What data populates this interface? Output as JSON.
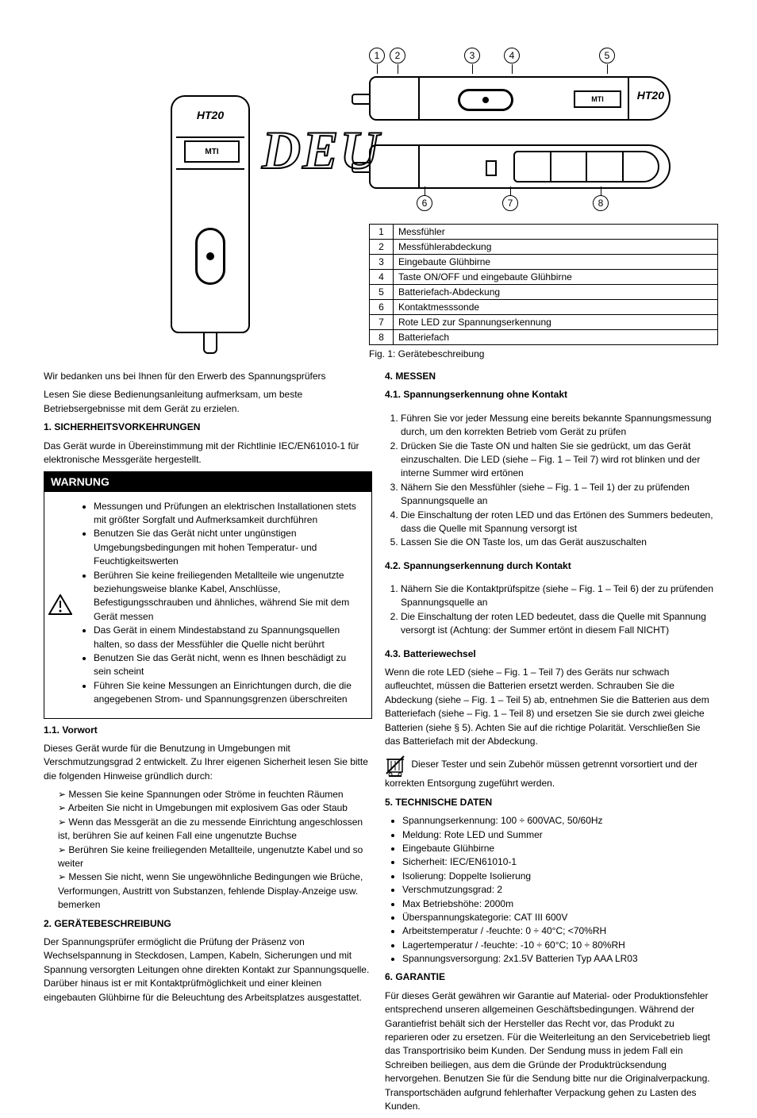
{
  "lang_tag": "DEU",
  "pen_label_ht20": "HT20",
  "pen_label_logo": "MTI",
  "callouts_top": [
    "1",
    "2",
    "3",
    "4",
    "5"
  ],
  "callouts_bot": [
    "6",
    "7",
    "8"
  ],
  "callouts_top_pos": [
    0,
    26,
    120,
    170,
    290
  ],
  "callouts_bot_pos": [
    60,
    168,
    282
  ],
  "table_caption": "Fig. 1: Gerätebeschreibung",
  "table_rows": [
    [
      "1",
      "Messfühler"
    ],
    [
      "2",
      "Messfühlerabdeckung"
    ],
    [
      "3",
      "Eingebaute Glühbirne"
    ],
    [
      "4",
      "Taste ON/OFF und eingebaute Glühbirne"
    ],
    [
      "5",
      "Batteriefach-Abdeckung"
    ],
    [
      "6",
      "Kontaktmesssonde"
    ],
    [
      "7",
      "Rote LED zur Spannungserkennung"
    ],
    [
      "8",
      "Batteriefach"
    ]
  ],
  "thanks1": "Wir bedanken uns bei Ihnen für den Erwerb des Spannungsprüfers",
  "thanks2": "Lesen Sie diese Bedienungsanleitung aufmerksam, um beste Betriebsergebnisse mit dem Gerät zu erzielen.",
  "sec1_title": "1. SICHERHEITSVORKEHRUNGEN",
  "sec1_intro": "Das Gerät wurde in Übereinstimmung mit der Richtlinie IEC/EN61010-1 für elektronische Messgeräte hergestellt.",
  "warn_title": "WARNUNG",
  "warn_items": [
    "Messungen und Prüfungen an elektrischen Installationen stets mit größter Sorgfalt und Aufmerksamkeit durchführen",
    "Benutzen Sie das Gerät nicht unter ungünstigen Umgebungsbedingungen mit hohen Temperatur- und Feuchtigkeitswerten",
    "Berühren Sie keine freiliegenden Metallteile wie ungenutzte beziehungsweise blanke Kabel, Anschlüsse, Befestigungsschrauben und ähnliches, während Sie mit dem Gerät messen",
    "Das Gerät in einem Mindestabstand zu Spannungsquellen halten, so dass der Messfühler die Quelle nicht berührt",
    "Benutzen Sie das Gerät nicht, wenn es Ihnen beschädigt zu sein scheint",
    "Führen Sie keine Messungen an Einrichtungen durch, die die angegebenen Strom- und Spannungsgrenzen überschreiten"
  ],
  "sec11_title": "1.1. Vorwort",
  "sec11_text": "Dieses Gerät wurde für die Benutzung in Umgebungen mit Verschmutzungsgrad 2 entwickelt. Zu Ihrer eigenen Sicherheit lesen Sie bitte die folgenden Hinweise gründlich durch:",
  "sec11_items": [
    "Messen Sie keine Spannungen oder Ströme in feuchten Räumen",
    "Arbeiten Sie nicht in Umgebungen mit explosivem Gas oder Staub",
    "Wenn das Messgerät an die zu messende Einrichtung angeschlossen ist, berühren Sie auf keinen Fall eine ungenutzte Buchse",
    "Berühren Sie keine freiliegenden Metallteile, ungenutzte Kabel und so weiter",
    "Messen Sie nicht, wenn Sie ungewöhnliche Bedingungen wie Brüche, Verformungen, Austritt von Substanzen, fehlende Display-Anzeige usw. bemerken"
  ],
  "sec2_title": "2. GERÄTEBESCHREIBUNG",
  "sec2_text": "Der Spannungsprüfer ermöglicht die Prüfung der Präsenz von Wechselspannung in Steckdosen, Lampen, Kabeln, Sicherungen und mit Spannung versorgten Leitungen ohne direkten Kontakt zur Spannungsquelle. Darüber hinaus ist er mit Kontaktprüfmöglichkeit und einer kleinen eingebauten Glühbirne für die Beleuchtung des Arbeitsplatzes ausgestattet.",
  "sec4_title": "4. MESSEN",
  "sec41_title": "4.1. Spannungserkennung ohne Kontakt",
  "sec41_steps": [
    "Führen Sie vor jeder Messung eine bereits bekannte Spannungsmessung durch, um den korrekten Betrieb vom Gerät zu prüfen",
    "Drücken Sie die Taste ON und halten Sie sie gedrückt, um das Gerät einzuschalten. Die LED (siehe – Fig. 1 – Teil 7) wird rot blinken und der interne Summer wird ertönen",
    "Nähern Sie den Messfühler (siehe – Fig. 1 – Teil 1) der zu prüfenden Spannungsquelle an",
    "Die Einschaltung der roten LED und das Ertönen des Summers bedeuten, dass die Quelle mit Spannung versorgt ist",
    "Lassen Sie die ON Taste los, um das Gerät auszuschalten"
  ],
  "sec42_title": "4.2. Spannungserkennung durch Kontakt",
  "sec42_steps": [
    "Nähern Sie die Kontaktprüfspitze (siehe – Fig. 1 – Teil 6) der zu prüfenden Spannungsquelle an",
    "Die Einschaltung der roten LED bedeutet, dass die Quelle mit Spannung versorgt ist (Achtung: der Summer ertönt in diesem Fall NICHT)"
  ],
  "sec43_title": "4.3. Batteriewechsel",
  "sec43_text": "Wenn die rote LED (siehe – Fig. 1 – Teil 7) des Geräts nur schwach aufleuchtet, müssen die Batterien ersetzt werden. Schrauben Sie die Abdeckung (siehe – Fig. 1 – Teil 5) ab, entnehmen Sie die Batterien aus dem Batteriefach (siehe – Fig. 1 – Teil 8) und ersetzen Sie sie durch zwei gleiche Batterien (siehe § 5). Achten Sie auf die richtige Polarität. Verschließen Sie das Batteriefach mit der Abdeckung.",
  "weee_text": "Dieser Tester und sein Zubehör müssen getrennt vorsortiert und der korrekten Entsorgung zugeführt werden.",
  "sec5_title": "5. TECHNISCHE DATEN",
  "specs": [
    "Spannungserkennung: 100 ÷ 600VAC, 50/60Hz",
    "Meldung: Rote LED und Summer",
    "Eingebaute Glühbirne",
    "Sicherheit: IEC/EN61010-1",
    "Isolierung: Doppelte Isolierung",
    "Verschmutzungsgrad: 2",
    "Max Betriebshöhe: 2000m",
    "Überspannungskategorie: CAT III 600V",
    "Arbeitstemperatur / -feuchte: 0 ÷ 40°C; <70%RH",
    "Lagertemperatur / -feuchte: -10 ÷ 60°C; 10 ÷ 80%RH",
    "Spannungsversorgung: 2x1.5V Batterien Typ AAA LR03"
  ],
  "sec6_title": "6. GARANTIE",
  "sec6_text": "Für dieses Gerät gewähren wir Garantie auf Material- oder Produktionsfehler entsprechend unseren allgemeinen Geschäftsbedingungen. Während der Garantiefrist behält sich der Hersteller das Recht vor, das Produkt zu reparieren oder zu ersetzen. Für die Weiterleitung an den Servicebetrieb liegt das Transportrisiko beim Kunden. Der Sendung muss in jedem Fall ein Schreiben beiliegen, aus dem die Gründe der Produktrücksendung hervorgehen. Benutzen Sie für die Sendung bitte nur die Originalverpackung. Transportschäden aufgrund fehlerhafter Verpackung gehen zu Lasten des Kunden."
}
